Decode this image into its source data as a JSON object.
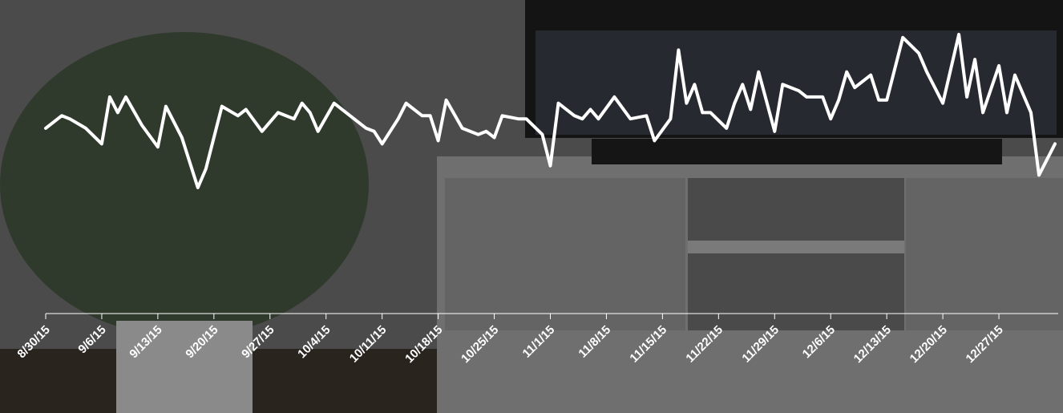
{
  "chart_data": {
    "type": "line",
    "color": "#ffffff",
    "x": [
      "8/30/15",
      "9/1/15",
      "9/2/15",
      "9/4/15",
      "9/6/15",
      "9/7/15",
      "9/8/15",
      "9/9/15",
      "9/11/15",
      "9/13/15",
      "9/14/15",
      "9/16/15",
      "9/18/15",
      "9/19/15",
      "9/21/15",
      "9/23/15",
      "9/24/15",
      "9/26/15",
      "9/28/15",
      "9/30/15",
      "10/1/15",
      "10/2/15",
      "10/3/15",
      "10/5/15",
      "10/7/15",
      "10/9/15",
      "10/10/15",
      "10/11/15",
      "10/13/15",
      "10/14/15",
      "10/16/15",
      "10/17/15",
      "10/18/15",
      "10/19/15",
      "10/21/15",
      "10/23/15",
      "10/24/15",
      "10/25/15",
      "10/26/15",
      "10/28/15",
      "10/29/15",
      "10/31/15",
      "11/1/15",
      "11/2/15",
      "11/4/15",
      "11/5/15",
      "11/6/15",
      "11/7/15",
      "11/9/15",
      "11/11/15",
      "11/13/15",
      "11/14/15",
      "11/16/15",
      "11/17/15",
      "11/18/15",
      "11/19/15",
      "11/20/15",
      "11/21/15",
      "11/23/15",
      "11/24/15",
      "11/25/15",
      "11/26/15",
      "11/27/15",
      "11/29/15",
      "11/30/15",
      "12/2/15",
      "12/3/15",
      "12/5/15",
      "12/6/15",
      "12/7/15",
      "12/8/15",
      "12/9/15",
      "12/11/15",
      "12/12/15",
      "12/13/15",
      "12/15/15",
      "12/17/15",
      "12/18/15",
      "12/20/15",
      "12/22/15",
      "12/23/15",
      "12/24/15",
      "12/25/15",
      "12/27/15",
      "12/28/15",
      "12/29/15",
      "12/31/15",
      "1/1/16",
      "1/2/16",
      "1/3/16"
    ],
    "values": [
      59,
      63,
      62,
      59,
      54,
      69,
      64,
      69,
      60,
      53,
      66,
      56,
      40,
      46,
      66,
      63,
      65,
      58,
      64,
      62,
      67,
      64,
      58,
      67,
      63,
      59,
      58,
      54,
      62,
      67,
      63,
      63,
      55,
      68,
      59,
      57,
      58,
      56,
      63,
      62,
      62,
      57,
      47,
      67,
      63,
      62,
      65,
      62,
      69,
      62,
      63,
      55,
      62,
      84,
      67,
      73,
      64,
      64,
      59,
      67,
      73,
      65,
      77,
      58,
      73,
      71,
      69,
      69,
      62,
      68,
      77,
      72,
      76,
      68,
      68,
      88,
      83,
      77,
      67,
      89,
      69,
      81,
      64,
      79,
      64,
      76,
      64,
      44,
      49,
      54
    ],
    "xlim": [
      "8/30/15",
      "1/3/16"
    ],
    "xticks": [
      "8/30/15",
      "9/6/15",
      "9/13/15",
      "9/20/15",
      "9/27/15",
      "10/4/15",
      "10/11/15",
      "10/18/15",
      "10/25/15",
      "11/1/15",
      "11/8/15",
      "11/15/15",
      "11/22/15",
      "11/29/15",
      "12/6/15",
      "12/13/15",
      "12/20/15",
      "12/27/15"
    ],
    "ylim": [
      0,
      100
    ]
  }
}
